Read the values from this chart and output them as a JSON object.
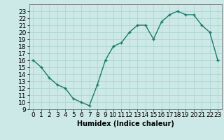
{
  "x": [
    0,
    1,
    2,
    3,
    4,
    5,
    6,
    7,
    8,
    9,
    10,
    11,
    12,
    13,
    14,
    15,
    16,
    17,
    18,
    19,
    20,
    21,
    22,
    23
  ],
  "y": [
    16,
    15,
    13.5,
    12.5,
    12,
    10.5,
    10,
    9.5,
    12.5,
    16,
    18,
    18.5,
    20,
    21,
    21,
    19,
    21.5,
    22.5,
    23,
    22.5,
    22.5,
    21,
    20,
    16
  ],
  "line_color": "#1a7a6a",
  "marker": "+",
  "bg_color": "#cce9e7",
  "grid_color": "#aad4d0",
  "xlabel": "Humidex (Indice chaleur)",
  "xlabel_fontsize": 7,
  "tick_fontsize": 6.5,
  "xlim": [
    -0.5,
    23.5
  ],
  "ylim": [
    9,
    24
  ],
  "yticks": [
    9,
    10,
    11,
    12,
    13,
    14,
    15,
    16,
    17,
    18,
    19,
    20,
    21,
    22,
    23
  ],
  "xticks": [
    0,
    1,
    2,
    3,
    4,
    5,
    6,
    7,
    8,
    9,
    10,
    11,
    12,
    13,
    14,
    15,
    16,
    17,
    18,
    19,
    20,
    21,
    22,
    23
  ],
  "line_width": 1.0,
  "marker_size": 3.5
}
